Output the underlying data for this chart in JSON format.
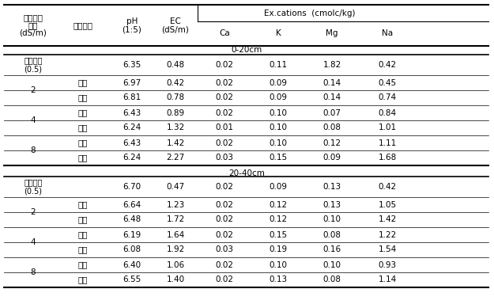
{
  "ex_cations_header": "Ex.cations  (cmolc/kg)",
  "sub_headers": [
    "Ca",
    "K",
    "Mg",
    "Na"
  ],
  "section1_label": "0-20cm",
  "section2_label": "20-40cm",
  "col_headers": [
    [
      "관개용수",
      "염도",
      "(dS/m)"
    ],
    [
      "생육시기"
    ],
    [
      "pH",
      "(1:5)"
    ],
    [
      "EC",
      "(dS/m)"
    ]
  ],
  "rows_020": [
    {
      "salinity": "정상관수\n(0.5)",
      "growth": "",
      "pH": "6.35",
      "EC": "0.48",
      "Ca": "0.02",
      "K": "0.11",
      "Mg": "1.82",
      "Na": "0.42",
      "span": 1
    },
    {
      "salinity": "2",
      "growth": "영양",
      "pH": "6.97",
      "EC": "0.42",
      "Ca": "0.02",
      "K": "0.09",
      "Mg": "0.14",
      "Na": "0.45",
      "span": 2
    },
    {
      "salinity": "2",
      "growth": "출사",
      "pH": "6.81",
      "EC": "0.78",
      "Ca": "0.02",
      "K": "0.09",
      "Mg": "0.14",
      "Na": "0.74",
      "span": 0
    },
    {
      "salinity": "4",
      "growth": "영양",
      "pH": "6.43",
      "EC": "0.89",
      "Ca": "0.02",
      "K": "0.10",
      "Mg": "0.07",
      "Na": "0.84",
      "span": 2
    },
    {
      "salinity": "4",
      "growth": "출사",
      "pH": "6.24",
      "EC": "1.32",
      "Ca": "0.01",
      "K": "0.10",
      "Mg": "0.08",
      "Na": "1.01",
      "span": 0
    },
    {
      "salinity": "8",
      "growth": "영양",
      "pH": "6.43",
      "EC": "1.42",
      "Ca": "0.02",
      "K": "0.10",
      "Mg": "0.12",
      "Na": "1.11",
      "span": 2
    },
    {
      "salinity": "8",
      "growth": "출사",
      "pH": "6.24",
      "EC": "2.27",
      "Ca": "0.03",
      "K": "0.15",
      "Mg": "0.09",
      "Na": "1.68",
      "span": 0
    }
  ],
  "rows_2040": [
    {
      "salinity": "정상관수\n(0.5)",
      "growth": "",
      "pH": "6.70",
      "EC": "0.47",
      "Ca": "0.02",
      "K": "0.09",
      "Mg": "0.13",
      "Na": "0.42",
      "span": 1
    },
    {
      "salinity": "2",
      "growth": "영양",
      "pH": "6.64",
      "EC": "1.23",
      "Ca": "0.02",
      "K": "0.12",
      "Mg": "0.13",
      "Na": "1.05",
      "span": 2
    },
    {
      "salinity": "2",
      "growth": "출사",
      "pH": "6.48",
      "EC": "1.72",
      "Ca": "0.02",
      "K": "0.12",
      "Mg": "0.10",
      "Na": "1.42",
      "span": 0
    },
    {
      "salinity": "4",
      "growth": "영양",
      "pH": "6.19",
      "EC": "1.64",
      "Ca": "0.02",
      "K": "0.15",
      "Mg": "0.08",
      "Na": "1.22",
      "span": 2
    },
    {
      "salinity": "4",
      "growth": "출사",
      "pH": "6.08",
      "EC": "1.92",
      "Ca": "0.03",
      "K": "0.19",
      "Mg": "0.16",
      "Na": "1.54",
      "span": 0
    },
    {
      "salinity": "8",
      "growth": "영양",
      "pH": "6.40",
      "EC": "1.06",
      "Ca": "0.02",
      "K": "0.10",
      "Mg": "0.10",
      "Na": "0.93",
      "span": 2
    },
    {
      "salinity": "8",
      "growth": "출사",
      "pH": "6.55",
      "EC": "1.40",
      "Ca": "0.02",
      "K": "0.13",
      "Mg": "0.08",
      "Na": "1.14",
      "span": 0
    }
  ],
  "font_size": 7.5,
  "bg_color": "#ffffff",
  "text_color": "#000000"
}
